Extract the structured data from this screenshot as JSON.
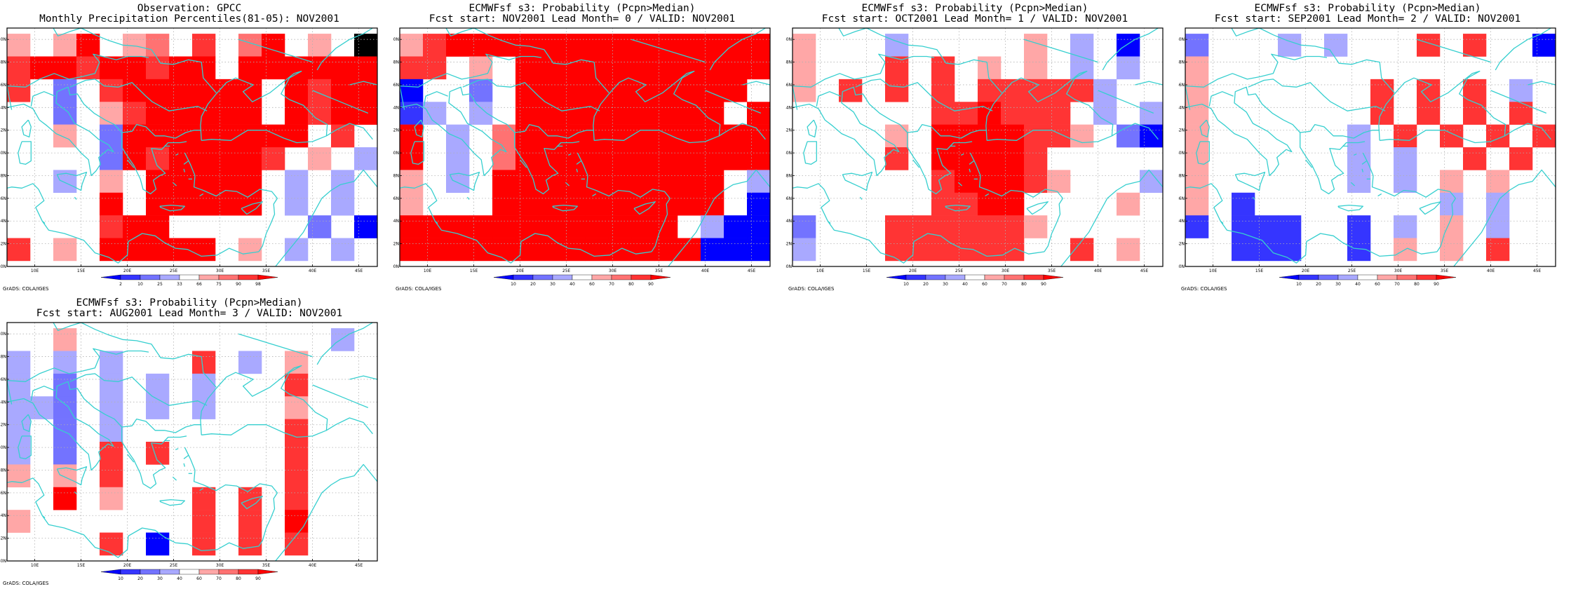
{
  "figure": {
    "panels": [
      {
        "id": "obs",
        "title_line1": "Observation: GPCC",
        "title_line2": "Monthly Precipitation Percentiles(81-05): NOV2001",
        "colorbar_labels": [
          "2",
          "10",
          "25",
          "33",
          "66",
          "75",
          "90",
          "98"
        ],
        "credit": "GrADS: COLA/IGES"
      },
      {
        "id": "lead0",
        "title_line1": "ECMWFsf s3: Probability (Pcpn>Median)",
        "title_line2": "Fcst start: NOV2001   Lead Month= 0 / VALID: NOV2001",
        "colorbar_labels": [
          "10",
          "20",
          "30",
          "40",
          "60",
          "70",
          "80",
          "90"
        ],
        "credit": "GrADS: COLA/IGES"
      },
      {
        "id": "lead1",
        "title_line1": "ECMWFsf s3: Probability (Pcpn>Median)",
        "title_line2": "Fcst start: OCT2001   Lead Month= 1 / VALID: NOV2001",
        "colorbar_labels": [
          "10",
          "20",
          "30",
          "40",
          "60",
          "70",
          "80",
          "90"
        ],
        "credit": "GrADS: COLA/IGES"
      },
      {
        "id": "lead2",
        "title_line1": "ECMWFsf s3: Probability (Pcpn>Median)",
        "title_line2": "Fcst start: SEP2001   Lead Month= 2 / VALID: NOV2001",
        "colorbar_labels": [
          "10",
          "20",
          "30",
          "40",
          "60",
          "70",
          "80",
          "90"
        ],
        "credit": "GrADS: COLA/IGES"
      },
      {
        "id": "lead3",
        "title_line1": "ECMWFsf s3: Probability (Pcpn>Median)",
        "title_line2": "Fcst start: AUG2001   Lead Month= 3 / VALID: NOV2001",
        "colorbar_labels": [
          "10",
          "20",
          "30",
          "40",
          "60",
          "70",
          "80",
          "90"
        ],
        "credit": "GrADS: COLA/IGES"
      }
    ],
    "lon_ticks": [
      "10E",
      "15E",
      "20E",
      "25E",
      "30E",
      "35E",
      "40E",
      "45E"
    ],
    "lat_ticks": [
      "30N",
      "32N",
      "34N",
      "36N",
      "38N",
      "40N",
      "42N",
      "44N",
      "46N",
      "48N",
      "50N"
    ],
    "colors": {
      "blue_ramp": [
        "#0000ff",
        "#3535ff",
        "#7373ff",
        "#a9a9ff"
      ],
      "red_ramp": [
        "#ffa7a7",
        "#ff7272",
        "#ff3434",
        "#ff0000"
      ],
      "coastline": "#36cfcf",
      "grid": "#b0b0b0"
    }
  }
}
